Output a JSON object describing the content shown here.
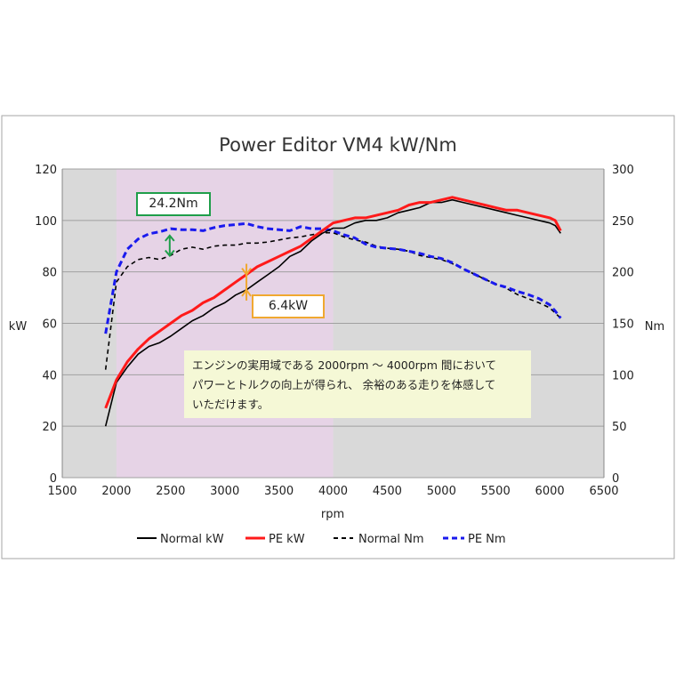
{
  "chart_data": {
    "type": "line",
    "title": "Power Editor VM4 kW/Nm",
    "xlabel": "rpm",
    "ylabel_left": "kW",
    "ylabel_right": "Nm",
    "xlim": [
      1500,
      6500
    ],
    "ylim_left": [
      0,
      120
    ],
    "ylim_right": [
      0,
      300
    ],
    "xticks": [
      "1500",
      "2000",
      "2500",
      "3000",
      "3500",
      "4000",
      "4500",
      "5000",
      "5500",
      "6000",
      "6500"
    ],
    "yticks_left": [
      "0",
      "20",
      "40",
      "60",
      "80",
      "100",
      "120"
    ],
    "yticks_right": [
      "0",
      "50",
      "100",
      "150",
      "200",
      "250",
      "300"
    ],
    "grid": true,
    "legend": "bottom",
    "highlight_range": [
      2000,
      4000
    ],
    "colors": {
      "normal_kw": "#000000",
      "pe_kw": "#ff1a1a",
      "normal_nm": "#000000",
      "pe_nm": "#1a1aee",
      "highlight": "#e6d3e6",
      "plot_bg": "#d9d9d9"
    },
    "x": [
      1900,
      2000,
      2100,
      2200,
      2300,
      2400,
      2500,
      2600,
      2700,
      2800,
      2900,
      3000,
      3100,
      3200,
      3300,
      3400,
      3500,
      3600,
      3700,
      3800,
      3900,
      4000,
      4100,
      4200,
      4300,
      4400,
      4500,
      4600,
      4700,
      4800,
      4900,
      5000,
      5100,
      5200,
      5300,
      5400,
      5500,
      5600,
      5700,
      5800,
      5900,
      6000,
      6050,
      6100
    ],
    "series": [
      {
        "name": "Normal kW",
        "axis": "left",
        "style": "solid",
        "values": [
          20,
          37,
          43,
          48,
          51,
          52.5,
          55,
          58,
          61,
          63,
          66,
          68,
          71,
          73,
          76,
          79,
          82,
          86,
          88,
          92,
          95,
          97,
          97,
          99,
          100,
          100,
          101,
          103,
          104,
          105,
          107,
          107,
          108,
          107,
          106,
          105,
          104,
          103,
          102,
          101,
          100,
          99,
          98,
          95
        ]
      },
      {
        "name": "PE kW",
        "axis": "left",
        "style": "solid-thick",
        "values": [
          27,
          38,
          45,
          50,
          54,
          57,
          60,
          63,
          65,
          68,
          70,
          73,
          76,
          79,
          82,
          84,
          86,
          88,
          90,
          93,
          96,
          99,
          100,
          101,
          101,
          102,
          103,
          104,
          106,
          107,
          107,
          108,
          109,
          108,
          107,
          106,
          105,
          104,
          104,
          103,
          102,
          101,
          100,
          96
        ]
      },
      {
        "name": "Normal Nm",
        "axis": "right",
        "style": "dashed",
        "values": [
          105,
          190,
          205,
          212,
          214,
          212,
          216,
          222,
          224,
          222,
          225,
          226,
          226,
          228,
          228,
          229,
          231,
          233,
          234,
          236,
          238,
          238,
          234,
          231,
          229,
          225,
          223,
          222,
          220,
          216,
          214,
          212,
          208,
          203,
          198,
          193,
          188,
          184,
          178,
          174,
          170,
          165,
          160,
          155
        ]
      },
      {
        "name": "PE Nm",
        "axis": "right",
        "style": "dashed-thick",
        "values": [
          140,
          200,
          222,
          232,
          237,
          239,
          242,
          241,
          241,
          240,
          243,
          245,
          246,
          247,
          244,
          242,
          241,
          240,
          244,
          242,
          242,
          240,
          236,
          233,
          227,
          224,
          223,
          222,
          220,
          218,
          215,
          213,
          209,
          203,
          198,
          193,
          188,
          185,
          181,
          178,
          174,
          168,
          162,
          155
        ]
      }
    ],
    "annotations": [
      {
        "text": "24.2Nm",
        "rpm": 2500,
        "from_nm": 214,
        "to_nm": 237,
        "color": "#1f9e4a"
      },
      {
        "text": "6.4kW",
        "rpm": 3200,
        "from_kw": 73,
        "to_kw": 79,
        "color": "#f0a830"
      }
    ],
    "note_lines": [
      "エンジンの実用域である 2000rpm 〜 4000rpm 間において",
      "パワーとトルクの向上が得られ、 余裕のある走りを体感して",
      "いただけます。"
    ]
  }
}
